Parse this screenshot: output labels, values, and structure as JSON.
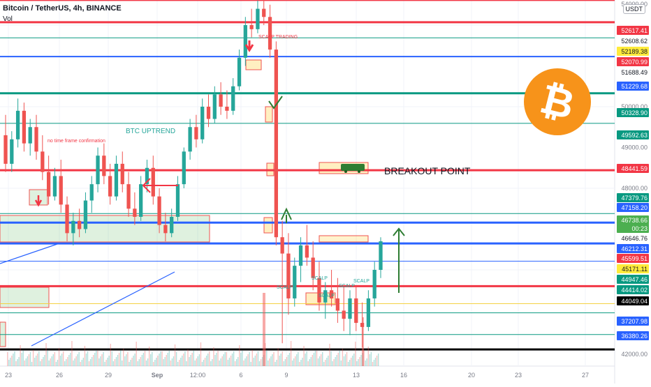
{
  "header": {
    "title": "Bitcoin / TetherUS, 4h, BINANCE",
    "volume_label": "Vol",
    "currency": "USDT"
  },
  "colors": {
    "up": "#26a69a",
    "down": "#ef5350",
    "red_level": "#f23645",
    "blue_level": "#2962ff",
    "green_level": "#089981",
    "black_level": "#000000",
    "btc_orange": "#f7931a"
  },
  "chart_data": {
    "type": "candlestick",
    "title": "Bitcoin / TetherUS, 4h, BINANCE",
    "y_axis": {
      "ticks": [
        "54000.00",
        "50000.00",
        "49000.00",
        "48000.00",
        "42000.00"
      ],
      "ylim": [
        42000,
        54000
      ]
    },
    "x_axis": {
      "ticks": [
        "23",
        "26",
        "29",
        "Sep",
        "12:00",
        "6",
        "9",
        "13",
        "16",
        "20",
        "23",
        "27"
      ]
    },
    "price_labels": [
      {
        "value": "52617.41",
        "style": "red"
      },
      {
        "value": "52608.62",
        "style": "plain"
      },
      {
        "value": "52189.38",
        "style": "yellow"
      },
      {
        "value": "52070.99",
        "style": "red"
      },
      {
        "value": "51688.49",
        "style": "plain"
      },
      {
        "value": "51229.68",
        "style": "blue"
      },
      {
        "value": "50328.90",
        "style": "green"
      },
      {
        "value": "49592.63",
        "style": "green"
      },
      {
        "value": "48441.59",
        "style": "red"
      },
      {
        "value": "47379.76",
        "style": "green"
      },
      {
        "value": "47158.20",
        "style": "blue"
      },
      {
        "value": "46738.66",
        "style": "lightgreen"
      },
      {
        "value": "00:23",
        "style": "lightgreen"
      },
      {
        "value": "46646.76",
        "style": "plain"
      },
      {
        "value": "46212.31",
        "style": "blue"
      },
      {
        "value": "45599.51",
        "style": "red"
      },
      {
        "value": "45171.11",
        "style": "yellow"
      },
      {
        "value": "44947.46",
        "style": "green"
      },
      {
        "value": "44414.02",
        "style": "green"
      },
      {
        "value": "44049.04",
        "style": "black"
      },
      {
        "value": "37207.98",
        "style": "blue"
      },
      {
        "value": "36380.26",
        "style": "blue"
      }
    ],
    "levels": [
      {
        "value": 52617.41,
        "color": "red",
        "width": 3
      },
      {
        "value": 52070.99,
        "color": "red",
        "width": 3
      },
      {
        "value": 51688.49,
        "color": "green",
        "width": 1
      },
      {
        "value": 51229.68,
        "color": "blue",
        "width": 2
      },
      {
        "value": 50328.9,
        "color": "green",
        "width": 3
      },
      {
        "value": 49592.63,
        "color": "green",
        "width": 1
      },
      {
        "value": 48441.59,
        "color": "red",
        "width": 3
      },
      {
        "value": 47379.76,
        "color": "green",
        "width": 1
      },
      {
        "value": 47158.2,
        "color": "blue",
        "width": 3
      },
      {
        "value": 46646.76,
        "color": "blue",
        "width": 3
      },
      {
        "value": 46212.31,
        "color": "blue",
        "width": 1
      },
      {
        "value": 45599.51,
        "color": "red",
        "width": 3
      },
      {
        "value": 45171.11,
        "color": "yellow",
        "width": 1
      },
      {
        "value": 44947.46,
        "color": "green",
        "width": 1
      },
      {
        "value": 44414.02,
        "color": "green",
        "width": 1
      },
      {
        "value": 44049.04,
        "color": "black",
        "width": 3
      },
      {
        "value": 36380.26,
        "color": "blue",
        "width": 3
      }
    ],
    "annotations": {
      "scalp_trading": "SCALP TRADING",
      "no_tf_confirmation": "no time frame confirmation",
      "btc_uptrend": "BTC  UPTREND",
      "breakout_point": "BREAKOUT POINT",
      "scalp": "SCALP"
    },
    "candles": [
      {
        "o": 49300,
        "h": 49800,
        "l": 48400,
        "c": 48600
      },
      {
        "o": 48600,
        "h": 49400,
        "l": 48400,
        "c": 49200
      },
      {
        "o": 49200,
        "h": 50200,
        "l": 49000,
        "c": 49900
      },
      {
        "o": 49900,
        "h": 50100,
        "l": 48900,
        "c": 49100
      },
      {
        "o": 49100,
        "h": 49700,
        "l": 48800,
        "c": 49500
      },
      {
        "o": 49500,
        "h": 49800,
        "l": 48700,
        "c": 48900
      },
      {
        "o": 48900,
        "h": 49300,
        "l": 48200,
        "c": 48400
      },
      {
        "o": 48400,
        "h": 48800,
        "l": 47600,
        "c": 47800
      },
      {
        "o": 47800,
        "h": 48500,
        "l": 47700,
        "c": 48300
      },
      {
        "o": 48300,
        "h": 48700,
        "l": 47400,
        "c": 47600
      },
      {
        "o": 47600,
        "h": 47800,
        "l": 46700,
        "c": 46900
      },
      {
        "o": 46900,
        "h": 47400,
        "l": 46600,
        "c": 47200
      },
      {
        "o": 47200,
        "h": 47500,
        "l": 46800,
        "c": 47000
      },
      {
        "o": 47000,
        "h": 47900,
        "l": 46900,
        "c": 47700
      },
      {
        "o": 47700,
        "h": 48300,
        "l": 47400,
        "c": 48100
      },
      {
        "o": 48100,
        "h": 49000,
        "l": 47900,
        "c": 48800
      },
      {
        "o": 48800,
        "h": 49100,
        "l": 48100,
        "c": 48300
      },
      {
        "o": 48300,
        "h": 48600,
        "l": 47600,
        "c": 47800
      },
      {
        "o": 47800,
        "h": 48800,
        "l": 47700,
        "c": 48600
      },
      {
        "o": 48600,
        "h": 48900,
        "l": 47900,
        "c": 48100
      },
      {
        "o": 48100,
        "h": 48400,
        "l": 47300,
        "c": 47500
      },
      {
        "o": 47500,
        "h": 47900,
        "l": 47100,
        "c": 47300
      },
      {
        "o": 47300,
        "h": 48300,
        "l": 47200,
        "c": 48100
      },
      {
        "o": 48100,
        "h": 48700,
        "l": 47900,
        "c": 48500
      },
      {
        "o": 48500,
        "h": 48800,
        "l": 47600,
        "c": 47800
      },
      {
        "o": 47800,
        "h": 48000,
        "l": 46900,
        "c": 47100
      },
      {
        "o": 47100,
        "h": 47400,
        "l": 46700,
        "c": 46900
      },
      {
        "o": 46900,
        "h": 47500,
        "l": 46800,
        "c": 47300
      },
      {
        "o": 47300,
        "h": 48300,
        "l": 47200,
        "c": 48100
      },
      {
        "o": 48100,
        "h": 49000,
        "l": 48000,
        "c": 48900
      },
      {
        "o": 48900,
        "h": 49700,
        "l": 48700,
        "c": 49500
      },
      {
        "o": 49500,
        "h": 49800,
        "l": 49000,
        "c": 49200
      },
      {
        "o": 49200,
        "h": 50200,
        "l": 49100,
        "c": 50000
      },
      {
        "o": 50000,
        "h": 50300,
        "l": 49500,
        "c": 49700
      },
      {
        "o": 49700,
        "h": 50500,
        "l": 49600,
        "c": 50300
      },
      {
        "o": 50300,
        "h": 50600,
        "l": 49800,
        "c": 50000
      },
      {
        "o": 50000,
        "h": 50400,
        "l": 49700,
        "c": 49900
      },
      {
        "o": 49900,
        "h": 50700,
        "l": 49800,
        "c": 50500
      },
      {
        "o": 50500,
        "h": 51400,
        "l": 50400,
        "c": 51200
      },
      {
        "o": 51200,
        "h": 52200,
        "l": 51000,
        "c": 52000
      },
      {
        "o": 52000,
        "h": 52400,
        "l": 51700,
        "c": 51900
      },
      {
        "o": 51900,
        "h": 52600,
        "l": 51800,
        "c": 52400
      },
      {
        "o": 52400,
        "h": 52700,
        "l": 52000,
        "c": 52200
      },
      {
        "o": 52200,
        "h": 52500,
        "l": 51200,
        "c": 51400
      },
      {
        "o": 51400,
        "h": 51600,
        "l": 46600,
        "c": 46800
      },
      {
        "o": 46800,
        "h": 47200,
        "l": 44200,
        "c": 46400
      },
      {
        "o": 46400,
        "h": 46900,
        "l": 44900,
        "c": 45300
      },
      {
        "o": 45300,
        "h": 46300,
        "l": 45100,
        "c": 46100
      },
      {
        "o": 46100,
        "h": 46800,
        "l": 45700,
        "c": 46600
      },
      {
        "o": 46600,
        "h": 47100,
        "l": 46100,
        "c": 46300
      },
      {
        "o": 46300,
        "h": 46700,
        "l": 45500,
        "c": 45800
      },
      {
        "o": 45800,
        "h": 46200,
        "l": 45000,
        "c": 45200
      },
      {
        "o": 45200,
        "h": 45700,
        "l": 44800,
        "c": 45500
      },
      {
        "o": 45500,
        "h": 46000,
        "l": 45100,
        "c": 45300
      },
      {
        "o": 45300,
        "h": 45800,
        "l": 44700,
        "c": 45000
      },
      {
        "o": 45000,
        "h": 45600,
        "l": 44500,
        "c": 44800
      },
      {
        "o": 44800,
        "h": 45500,
        "l": 44400,
        "c": 45300
      },
      {
        "o": 45300,
        "h": 45600,
        "l": 44500,
        "c": 44700
      },
      {
        "o": 44700,
        "h": 45200,
        "l": 44100,
        "c": 44600
      },
      {
        "o": 44600,
        "h": 45500,
        "l": 44500,
        "c": 45300
      },
      {
        "o": 45300,
        "h": 46200,
        "l": 45100,
        "c": 46000
      },
      {
        "o": 46000,
        "h": 46800,
        "l": 45800,
        "c": 46700
      }
    ]
  }
}
